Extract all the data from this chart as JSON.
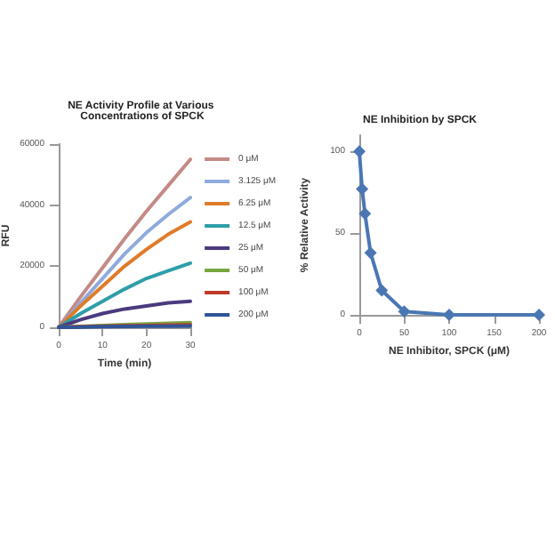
{
  "chart_data": [
    {
      "type": "line",
      "title": "NE Activity Profile at Various Concentrations of SPCK",
      "xlabel": "Time (min)",
      "ylabel": "RFU",
      "x": [
        0,
        5,
        10,
        15,
        20,
        25,
        30
      ],
      "xlim": [
        0,
        30
      ],
      "xticks": [
        0,
        10,
        20,
        30
      ],
      "ylim": [
        0,
        60000
      ],
      "yticks": [
        0,
        20000,
        40000,
        60000
      ],
      "legend": "right",
      "marker": "none",
      "grid": false,
      "series": [
        {
          "name": "0 μM",
          "color": "#c48a86",
          "values": [
            0,
            10000,
            19500,
            29000,
            38000,
            46500,
            55000
          ]
        },
        {
          "name": "3.125 μM",
          "color": "#8faadc",
          "values": [
            0,
            8000,
            16000,
            24000,
            31000,
            37000,
            42500
          ]
        },
        {
          "name": "6.25 μM",
          "color": "#e07b2a",
          "values": [
            0,
            7000,
            13500,
            20000,
            25500,
            30500,
            34500
          ]
        },
        {
          "name": "12.5 μM",
          "color": "#2e9ea8",
          "values": [
            0,
            4500,
            8500,
            12500,
            16000,
            18500,
            21000
          ]
        },
        {
          "name": "25 μM",
          "color": "#4b3a7e",
          "values": [
            0,
            2500,
            4500,
            6000,
            7000,
            8000,
            8500
          ]
        },
        {
          "name": "50 μM",
          "color": "#77a640",
          "values": [
            0,
            300,
            600,
            900,
            1100,
            1300,
            1500
          ]
        },
        {
          "name": "100 μM",
          "color": "#c0392b",
          "values": [
            0,
            200,
            400,
            500,
            600,
            700,
            800
          ]
        },
        {
          "name": "200 μM",
          "color": "#2f5597",
          "values": [
            0,
            100,
            200,
            300,
            350,
            400,
            450
          ]
        }
      ]
    },
    {
      "type": "line",
      "title": "NE Inhibition by SPCK",
      "xlabel": "NE Inhibitor, SPCK (μM)",
      "ylabel": "% Relative Activity",
      "x": [
        0,
        3.125,
        6.25,
        12.5,
        25,
        50,
        100,
        200
      ],
      "xlim": [
        0,
        200
      ],
      "xticks": [
        0,
        50,
        100,
        150,
        200
      ],
      "ylim": [
        0,
        110
      ],
      "yticks": [
        0,
        50,
        100
      ],
      "legend": false,
      "marker": "diamond",
      "grid": false,
      "series": [
        {
          "color": "#4a77b4",
          "values": [
            100,
            77,
            62,
            38,
            15,
            2,
            0,
            0
          ]
        }
      ]
    }
  ]
}
